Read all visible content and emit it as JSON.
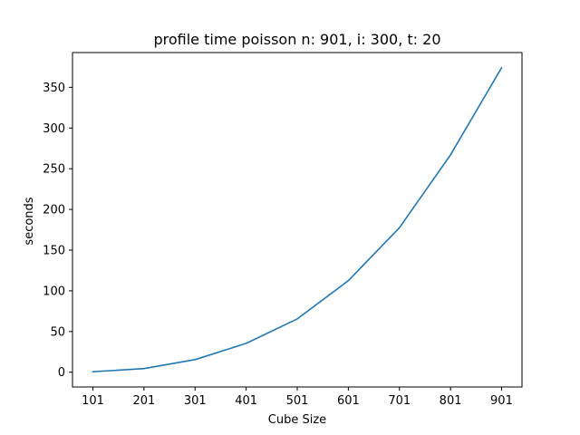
{
  "chart_data": {
    "type": "line",
    "title": "profile time poisson n: 901, i: 300, t: 20",
    "xlabel": "Cube Size",
    "ylabel": "seconds",
    "categories": [
      "101",
      "201",
      "301",
      "401",
      "501",
      "601",
      "701",
      "801",
      "901"
    ],
    "x": [
      101,
      201,
      301,
      401,
      501,
      601,
      701,
      801,
      901
    ],
    "y": [
      0.6,
      4.5,
      15.5,
      35.5,
      65.5,
      112.5,
      177.5,
      267,
      374
    ],
    "yticks": [
      0,
      50,
      100,
      150,
      200,
      250,
      300,
      350
    ],
    "ytick_labels": [
      "0",
      "50",
      "100",
      "150",
      "200",
      "250",
      "300",
      "350"
    ],
    "xlim": [
      61,
      941
    ],
    "ylim": [
      -18.1,
      392.7
    ],
    "grid": false,
    "line_color": "#1f77b4"
  }
}
